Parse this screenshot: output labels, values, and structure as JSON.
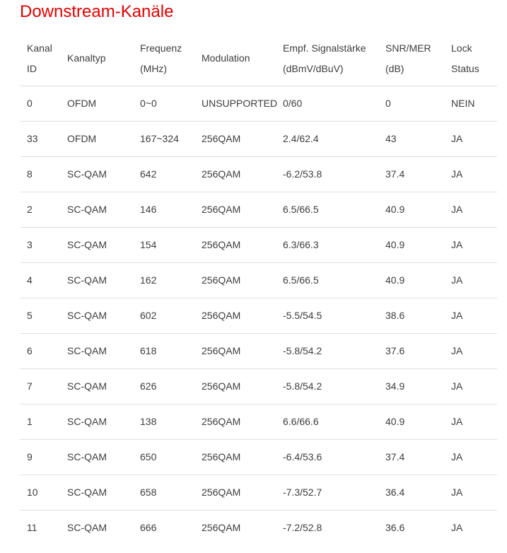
{
  "page": {
    "title": "Downstream-Kanäle",
    "title_color": "#e60000",
    "text_color": "#3d3d3d",
    "border_color": "#e0e0e0",
    "background_color": "#ffffff"
  },
  "table": {
    "columns": [
      {
        "id": "kanal-id",
        "lines": [
          "Kanal",
          "ID"
        ]
      },
      {
        "id": "kanaltyp",
        "lines": [
          "Kanaltyp"
        ]
      },
      {
        "id": "frequenz",
        "lines": [
          "Frequenz",
          "(MHz)"
        ]
      },
      {
        "id": "modulation",
        "lines": [
          "Modulation"
        ]
      },
      {
        "id": "signalstaerke",
        "lines": [
          "Empf. Signalstärke",
          "(dBmV/dBuV)"
        ]
      },
      {
        "id": "snr-mer",
        "lines": [
          "SNR/MER",
          "(dB)"
        ]
      },
      {
        "id": "lock-status",
        "lines": [
          "Lock",
          "Status"
        ]
      }
    ],
    "rows": [
      [
        "0",
        "OFDM",
        "0~0",
        "UNSUPPORTED",
        "0/60",
        "0",
        "NEIN"
      ],
      [
        "33",
        "OFDM",
        "167~324",
        "256QAM",
        "2.4/62.4",
        "43",
        "JA"
      ],
      [
        "8",
        "SC-QAM",
        "642",
        "256QAM",
        "-6.2/53.8",
        "37.4",
        "JA"
      ],
      [
        "2",
        "SC-QAM",
        "146",
        "256QAM",
        "6.5/66.5",
        "40.9",
        "JA"
      ],
      [
        "3",
        "SC-QAM",
        "154",
        "256QAM",
        "6.3/66.3",
        "40.9",
        "JA"
      ],
      [
        "4",
        "SC-QAM",
        "162",
        "256QAM",
        "6.5/66.5",
        "40.9",
        "JA"
      ],
      [
        "5",
        "SC-QAM",
        "602",
        "256QAM",
        "-5.5/54.5",
        "38.6",
        "JA"
      ],
      [
        "6",
        "SC-QAM",
        "618",
        "256QAM",
        "-5.8/54.2",
        "37.6",
        "JA"
      ],
      [
        "7",
        "SC-QAM",
        "626",
        "256QAM",
        "-5.8/54.2",
        "34.9",
        "JA"
      ],
      [
        "1",
        "SC-QAM",
        "138",
        "256QAM",
        "6.6/66.6",
        "40.9",
        "JA"
      ],
      [
        "9",
        "SC-QAM",
        "650",
        "256QAM",
        "-6.4/53.6",
        "37.4",
        "JA"
      ],
      [
        "10",
        "SC-QAM",
        "658",
        "256QAM",
        "-7.3/52.7",
        "36.4",
        "JA"
      ],
      [
        "11",
        "SC-QAM",
        "666",
        "256QAM",
        "-7.2/52.8",
        "36.6",
        "JA"
      ]
    ]
  }
}
